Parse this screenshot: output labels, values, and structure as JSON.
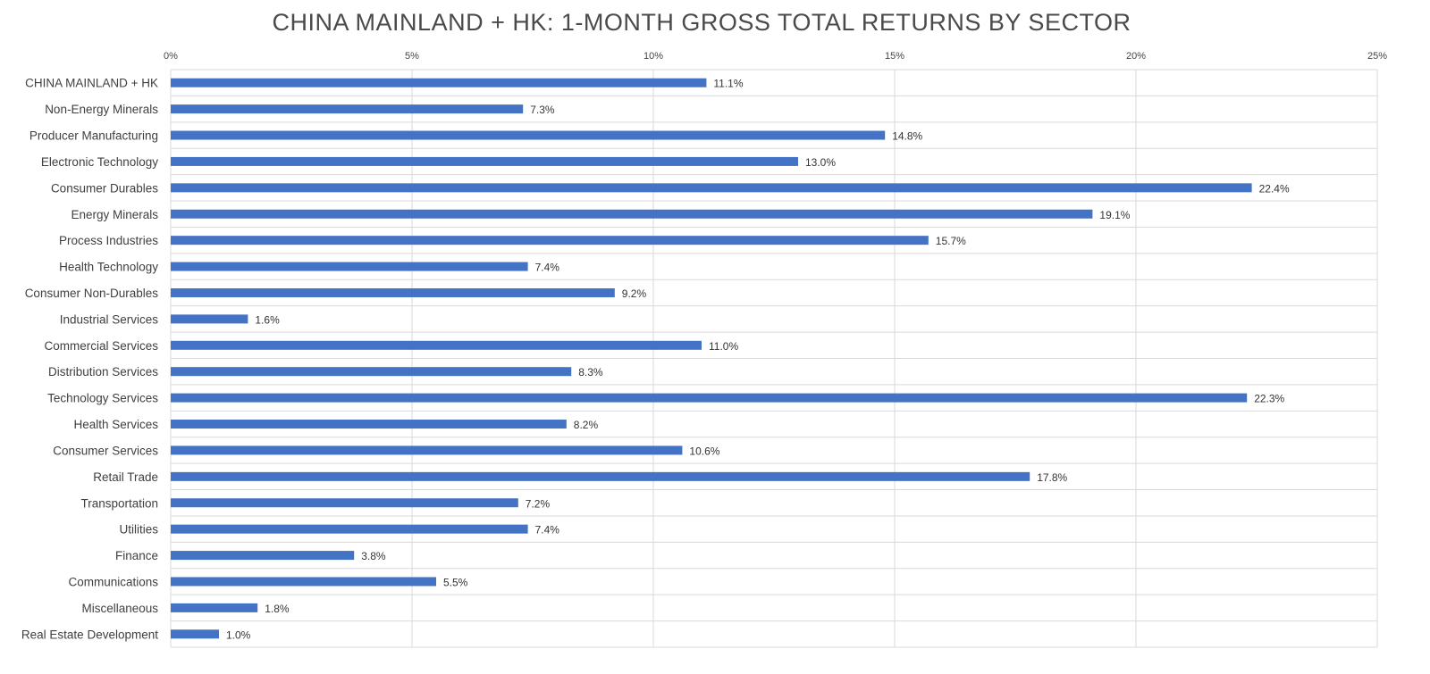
{
  "chart_data": {
    "type": "bar",
    "orientation": "horizontal",
    "title": "CHINA MAINLAND + HK: 1-MONTH GROSS TOTAL RETURNS BY SECTOR",
    "xlabel": "",
    "ylabel": "",
    "xlim": [
      0,
      25
    ],
    "xticks": [
      0,
      5,
      10,
      15,
      20,
      25
    ],
    "xtick_labels": [
      "0%",
      "5%",
      "10%",
      "15%",
      "20%",
      "25%"
    ],
    "x_axis_position": "top",
    "grid": true,
    "legend": "none",
    "bar_color": "#4472c4",
    "categories": [
      "CHINA MAINLAND + HK",
      "Non-Energy Minerals",
      "Producer Manufacturing",
      "Electronic Technology",
      "Consumer Durables",
      "Energy Minerals",
      "Process Industries",
      "Health Technology",
      "Consumer Non-Durables",
      "Industrial Services",
      "Commercial Services",
      "Distribution Services",
      "Technology Services",
      "Health Services",
      "Consumer Services",
      "Retail Trade",
      "Transportation",
      "Utilities",
      "Finance",
      "Communications",
      "Miscellaneous",
      "Real Estate Development"
    ],
    "values": [
      11.1,
      7.3,
      14.8,
      13.0,
      22.4,
      19.1,
      15.7,
      7.4,
      9.2,
      1.6,
      11.0,
      8.3,
      22.3,
      8.2,
      10.6,
      17.8,
      7.2,
      7.4,
      3.8,
      5.5,
      1.8,
      1.0
    ],
    "value_labels": [
      "11.1%",
      "7.3%",
      "14.8%",
      "13.0%",
      "22.4%",
      "19.1%",
      "15.7%",
      "7.4%",
      "9.2%",
      "1.6%",
      "11.0%",
      "8.3%",
      "22.3%",
      "8.2%",
      "10.6%",
      "17.8%",
      "7.2%",
      "7.4%",
      "3.8%",
      "5.5%",
      "1.8%",
      "1.0%"
    ]
  }
}
